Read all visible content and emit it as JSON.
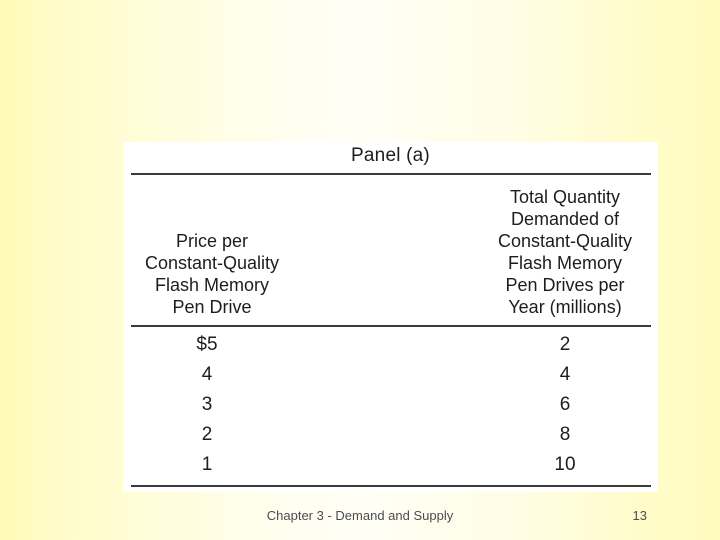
{
  "panel": {
    "title": "Panel (a)",
    "columns": [
      {
        "name": "price",
        "lines": [
          "Price per",
          "Constant-Quality",
          "Flash Memory",
          "Pen Drive"
        ]
      },
      {
        "name": "quantity",
        "lines": [
          "Total Quantity",
          "Demanded of",
          "Constant-Quality",
          "Flash Memory",
          "Pen Drives per",
          "Year (millions)"
        ]
      }
    ],
    "rows": [
      {
        "price": "$5",
        "quantity": "2"
      },
      {
        "price": "4",
        "quantity": "4"
      },
      {
        "price": "3",
        "quantity": "6"
      },
      {
        "price": "2",
        "quantity": "8"
      },
      {
        "price": "1",
        "quantity": "10"
      }
    ]
  },
  "footer": {
    "text": "Chapter 3 - Demand and Supply",
    "page_number": "13"
  },
  "colors": {
    "background_edge": "#fffcc6",
    "background_center": "#fffff6",
    "panel_background": "#ffffff",
    "table_text": "#1d1d1d",
    "rule": "#3b3b3b",
    "footer_text": "#4b4b54"
  },
  "chart_data": {
    "type": "table",
    "title": "Panel (a)",
    "columns": [
      "Price per Constant-Quality Flash Memory Pen Drive",
      "Total Quantity Demanded of Constant-Quality Flash Memory Pen Drives per Year (millions)"
    ],
    "rows": [
      [
        "$5",
        "2"
      ],
      [
        "4",
        "4"
      ],
      [
        "3",
        "6"
      ],
      [
        "2",
        "8"
      ],
      [
        "1",
        "10"
      ]
    ]
  }
}
